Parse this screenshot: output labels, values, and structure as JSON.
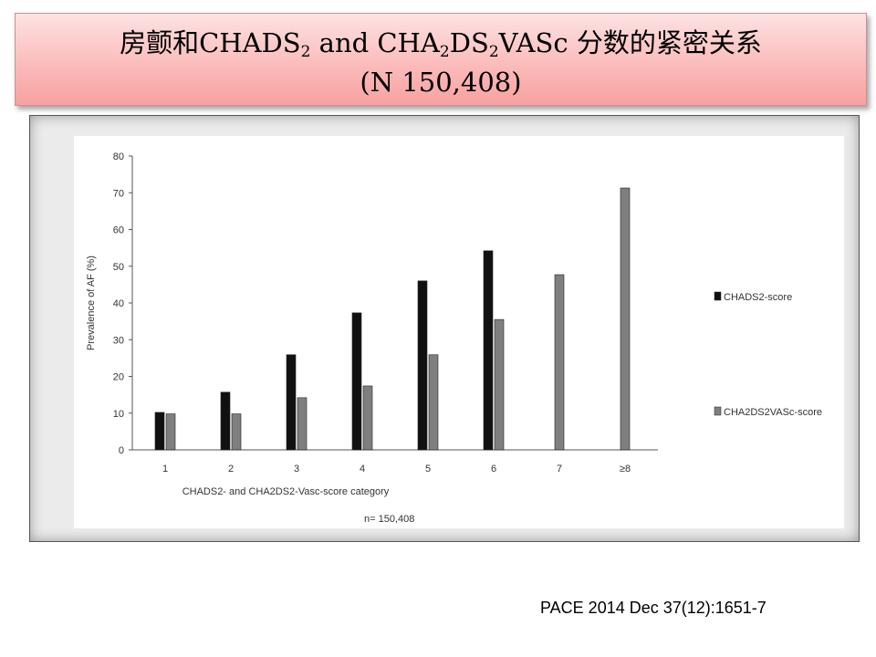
{
  "slide": {
    "title_prefix": "房颤和CHADS",
    "title_sub1": "2",
    "title_mid1": " and CHA",
    "title_sub2": "2",
    "title_mid2": "DS",
    "title_sub3": "2",
    "title_suffix": "VASc 分数的紧密关系",
    "title_line2": "(N 150,408)",
    "citation": "PACE 2014 Dec 37(12):1651-7"
  },
  "chart_data": {
    "type": "bar",
    "categories": [
      "1",
      "2",
      "3",
      "4",
      "5",
      "6",
      "7",
      "≥8"
    ],
    "series": [
      {
        "name": "CHADS2-score",
        "color": "#111111",
        "values": [
          10.2,
          15.7,
          25.9,
          37.3,
          46.0,
          54.2,
          null,
          null
        ]
      },
      {
        "name": "CHA2DS2VASc-score",
        "color": "#7f7f7f",
        "values": [
          9.8,
          9.8,
          14.2,
          17.4,
          25.9,
          35.5,
          47.7,
          71.3
        ]
      }
    ],
    "ylabel": "Prevalence of AF (%)",
    "xlabel": "CHADS2- and CHA2DS2-Vasc-score category",
    "note": "n= 150,408",
    "ylim": [
      0,
      80
    ],
    "yticks": [
      0,
      10,
      20,
      30,
      40,
      50,
      60,
      70,
      80
    ],
    "grid": false,
    "legend_position": "right"
  }
}
